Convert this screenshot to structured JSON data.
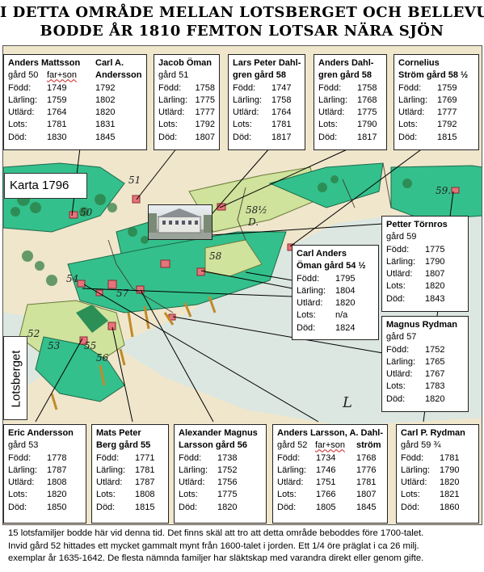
{
  "title": {
    "line1": "I DETTA OMRÅDE MELLAN LOTSBERGET OCH BELLEVUE",
    "line2": "BODDE ÅR 1810 FEMTON LOTSAR NÄRA SJÖN"
  },
  "map": {
    "label_karta": "Karta 1796",
    "label_lotsberget": "Lotsberget",
    "plot_labels": [
      "59.",
      "58½",
      "58",
      "D.",
      "53",
      "54",
      "55",
      "57",
      "56",
      "51",
      "52",
      "50",
      "L"
    ]
  },
  "row_labels": {
    "fodd": "Född:",
    "larling": "Lärling:",
    "utlard": "Utlärd:",
    "lots": "Lots:",
    "dod": "Död:"
  },
  "pilots": {
    "mattsson": {
      "name1": "Anders Mattsson",
      "name2": "Carl A.",
      "line2a": "gård 50",
      "line2b": "far+son",
      "line2c": "Andersson",
      "fodd": [
        "1749",
        "1792"
      ],
      "larling": [
        "1759",
        "1802"
      ],
      "utlard": [
        "1764",
        "1820"
      ],
      "lots": [
        "1781",
        "1831"
      ],
      "dod": [
        "1830",
        "1845"
      ]
    },
    "oman": {
      "name": "Jacob Öman",
      "gard": "gård 51",
      "fodd": "1758",
      "larling": "1775",
      "utlard": "1777",
      "lots": "1792",
      "dod": "1807"
    },
    "dahlgren_lp": {
      "name1": "Lars Peter Dahl-",
      "name2": "gren gård 58",
      "fodd": "1747",
      "larling": "1758",
      "utlard": "1764",
      "lots": "1781",
      "dod": "1817"
    },
    "dahlgren_a": {
      "name1": "Anders Dahl-",
      "name2": "gren gård 58",
      "fodd": "1758",
      "larling": "1768",
      "utlard": "1775",
      "lots": "1790",
      "dod": "1817"
    },
    "strom": {
      "name1": "Cornelius",
      "name2": "Ström gård 58 ½",
      "fodd": "1759",
      "larling": "1769",
      "utlard": "1777",
      "lots": "1792",
      "dod": "1815"
    },
    "tornros": {
      "name": "Petter Törnros",
      "gard": "gård 59",
      "fodd": "1775",
      "larling": "1790",
      "utlard": "1807",
      "lots": "1820",
      "dod": "1843"
    },
    "carl_oman": {
      "name1": "Carl Anders",
      "name2": "Öman gård 54 ½",
      "fodd": "1795",
      "larling": "1804",
      "utlard": "1820",
      "lots": "n/a",
      "dod": "1824"
    },
    "rydman_m": {
      "name": "Magnus Rydman",
      "gard": "gård 57",
      "fodd": "1752",
      "larling": "1765",
      "utlard": "1767",
      "lots": "1783",
      "dod": "1820"
    },
    "eric": {
      "name": "Eric Andersson",
      "gard": "gård 53",
      "fodd": "1778",
      "larling": "1787",
      "utlard": "1808",
      "lots": "1820",
      "dod": "1850"
    },
    "mats": {
      "name1": "Mats Peter",
      "name2": "Berg gård 55",
      "fodd": "1771",
      "larling": "1781",
      "utlard": "1787",
      "lots": "1808",
      "dod": "1815"
    },
    "alexander": {
      "name1": "Alexander Magnus",
      "name2": "Larsson gård 56",
      "fodd": "1738",
      "larling": "1752",
      "utlard": "1756",
      "lots": "1775",
      "dod": "1820"
    },
    "larsson": {
      "name1": "Anders Larsson, A. Dahl-",
      "line2a": "gård 52",
      "line2b": "far+son",
      "line2c": "ström",
      "fodd": [
        "1734",
        "1768"
      ],
      "larling": [
        "1746",
        "1776"
      ],
      "utlard": [
        "1751",
        "1781"
      ],
      "lots": [
        "1766",
        "1807"
      ],
      "dod": [
        "1805",
        "1845"
      ]
    },
    "rydman_c": {
      "name": "Carl P. Rydman",
      "gard": "gård 59 ¾",
      "fodd": "1781",
      "larling": "1790",
      "utlard": "1820",
      "lots": "1821",
      "dod": "1860"
    }
  },
  "footer": {
    "line1": "15 lotsfamiljer bodde här vid denna tid. Det finns skäl att tro att detta område beboddes före 1700-talet.",
    "line2": "Invid gård 52 hittades ett mycket gammalt mynt från 1600-talet i jorden. Ett 1/4 öre präglat i ca 26 milj.",
    "line3": "exemplar år 1635-1642. De flesta nämnda familjer har släktskap med varandra direkt eller genom gifte."
  },
  "colors": {
    "land": "#efe6cc",
    "green": "#34c08d",
    "dark_green": "#2b8f56",
    "field": "#cfe39d",
    "house": "#e8737a",
    "water": "#c9e6ef"
  }
}
